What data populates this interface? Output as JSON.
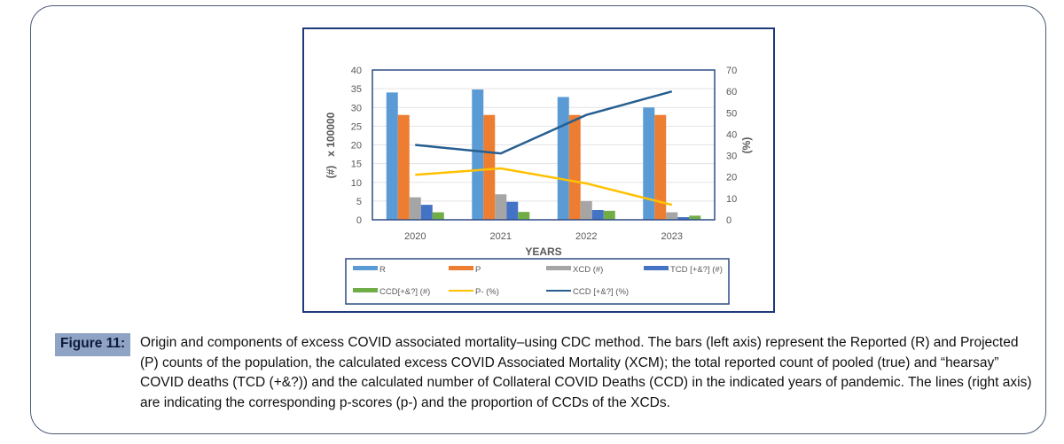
{
  "chart_data": {
    "type": "bar",
    "title": "",
    "xlabel": "YEARS",
    "ylabel": "(#)   x 100000",
    "y2label": "(%)",
    "ylim": [
      0,
      40
    ],
    "y2lim": [
      0,
      70
    ],
    "yticks": [
      "0",
      "5",
      "10",
      "15",
      "20",
      "25",
      "30",
      "35",
      "40"
    ],
    "y2ticks": [
      "0",
      "10",
      "20",
      "30",
      "40",
      "50",
      "60",
      "70"
    ],
    "grid": true,
    "legend_position": "bottom",
    "categories": [
      "2020",
      "2021",
      "2022",
      "2023"
    ],
    "series": [
      {
        "name": "R",
        "type": "bar",
        "axis": "left",
        "color": "#5b9bd5",
        "values": [
          34,
          34.8,
          32.8,
          30
        ]
      },
      {
        "name": "P",
        "type": "bar",
        "axis": "left",
        "color": "#ed7d31",
        "values": [
          28,
          28,
          28,
          28
        ]
      },
      {
        "name": "XCD (#)",
        "type": "bar",
        "axis": "left",
        "color": "#a5a5a5",
        "values": [
          6,
          6.8,
          5,
          2
        ]
      },
      {
        "name": "TCD [+&?] (#)",
        "type": "bar",
        "axis": "left",
        "color": "#4472c4",
        "values": [
          4,
          4.8,
          2.6,
          0.7
        ]
      },
      {
        "name": "CCD[+&?] (#)",
        "type": "bar",
        "axis": "left",
        "color": "#70ad47",
        "values": [
          2,
          2.1,
          2.4,
          1.1
        ]
      },
      {
        "name": "P- (%)",
        "type": "line",
        "axis": "right",
        "color": "#ffc000",
        "values": [
          21,
          24,
          17,
          7
        ]
      },
      {
        "name": "CCD [+&?] (%)",
        "type": "line",
        "axis": "right",
        "color": "#255e91",
        "values": [
          35,
          31,
          49,
          60
        ]
      }
    ]
  },
  "caption": {
    "label": "Figure 11:",
    "text": "Origin and components of excess COVID associated mortality–using CDC method. The bars (left axis) represent the Reported (R) and Projected (P) counts of the population, the calculated excess COVID Associated Mortality (XCM); the total reported count of pooled (true) and “hearsay” COVID deaths (TCD (+&?)) and the calculated number of Collateral COVID Deaths (CCD) in the indicated years of pandemic. The lines (right axis) are indicating the corresponding p-scores (p-) and the proportion of CCDs of the XCDs."
  }
}
